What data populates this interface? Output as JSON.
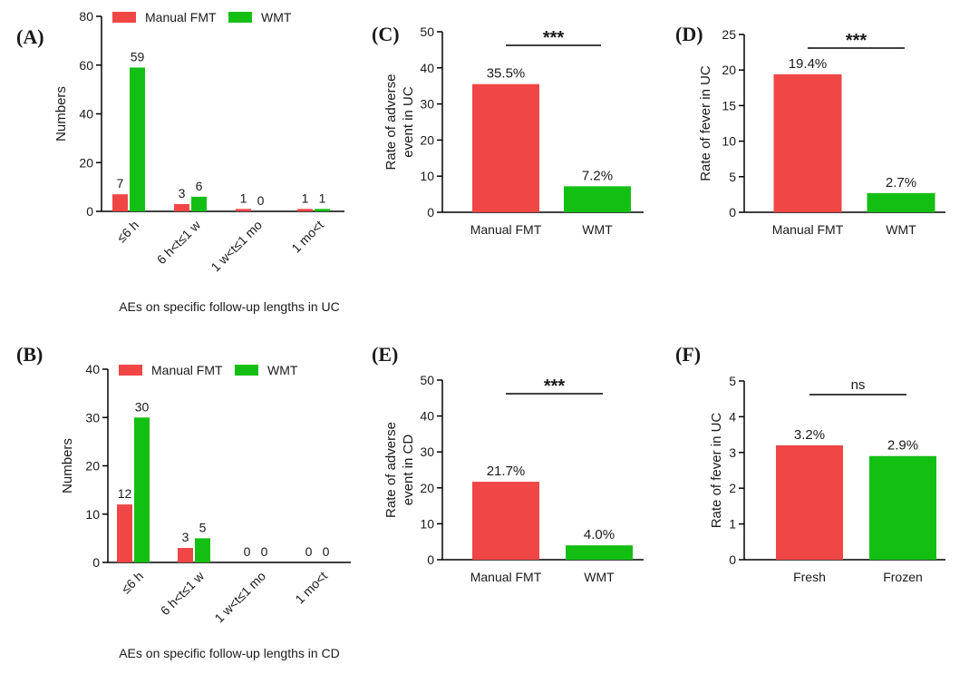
{
  "colors": {
    "manual": "#f04646",
    "wmt": "#14bf14",
    "axis": "#000000"
  },
  "chart_data": [
    {
      "id": "A",
      "type": "bar",
      "panel_label": "(A)",
      "categories": [
        "≤6 h",
        "6 h<t≤1 w",
        "1 w<t≤1 mo",
        "1 mo<t"
      ],
      "series": [
        {
          "name": "Manual FMT",
          "values": [
            7,
            3,
            1,
            1
          ]
        },
        {
          "name": "WMT",
          "values": [
            59,
            6,
            0,
            1
          ]
        }
      ],
      "ylabel": "Numbers",
      "xlabel": "AEs on specific follow-up lengths in UC",
      "ylim": [
        0,
        80
      ],
      "yticks": [
        0,
        20,
        40,
        60,
        80
      ],
      "legend": "top"
    },
    {
      "id": "B",
      "type": "bar",
      "panel_label": "(B)",
      "categories": [
        "≤6 h",
        "6 h<t≤1 w",
        "1 w<t≤1 mo",
        "1 mo<t"
      ],
      "series": [
        {
          "name": "Manual FMT",
          "values": [
            12,
            3,
            0,
            0
          ]
        },
        {
          "name": "WMT",
          "values": [
            30,
            5,
            0,
            0
          ]
        }
      ],
      "ylabel": "Numbers",
      "xlabel": "AEs on specific follow-up lengths in CD",
      "ylim": [
        0,
        40
      ],
      "yticks": [
        0,
        10,
        20,
        30,
        40
      ],
      "legend": "top"
    },
    {
      "id": "C",
      "type": "bar",
      "panel_label": "(C)",
      "categories": [
        "Manual FMT",
        "WMT"
      ],
      "values": [
        35.5,
        7.2
      ],
      "value_labels": [
        "35.5%",
        "7.2%"
      ],
      "ylabel": "Rate of adverse event in UC",
      "ylabel_lines": [
        "Rate of adverse",
        "event in UC"
      ],
      "ylim": [
        0,
        50
      ],
      "yticks": [
        0,
        10,
        20,
        30,
        40,
        50
      ],
      "significance": "***"
    },
    {
      "id": "D",
      "type": "bar",
      "panel_label": "(D)",
      "categories": [
        "Manual FMT",
        "WMT"
      ],
      "values": [
        19.4,
        2.7
      ],
      "value_labels": [
        "19.4%",
        "2.7%"
      ],
      "ylabel": "Rate of fever in UC",
      "ylabel_lines": [
        "Rate of fever in UC"
      ],
      "ylim": [
        0,
        25
      ],
      "yticks": [
        0,
        5,
        10,
        15,
        20,
        25
      ],
      "significance": "***"
    },
    {
      "id": "E",
      "type": "bar",
      "panel_label": "(E)",
      "categories": [
        "Manual FMT",
        "WMT"
      ],
      "values": [
        21.7,
        4.0
      ],
      "value_labels": [
        "21.7%",
        "4.0%"
      ],
      "ylabel": "Rate of adverse event in CD",
      "ylabel_lines": [
        "Rate of adverse",
        "event in CD"
      ],
      "ylim": [
        0,
        50
      ],
      "yticks": [
        0,
        10,
        20,
        30,
        40,
        50
      ],
      "significance": "***"
    },
    {
      "id": "F",
      "type": "bar",
      "panel_label": "(F)",
      "categories": [
        "Fresh",
        "Frozen"
      ],
      "values": [
        3.2,
        2.9
      ],
      "value_labels": [
        "3.2%",
        "2.9%"
      ],
      "ylabel": "Rate of fever in UC",
      "ylabel_lines": [
        "Rate of fever in UC"
      ],
      "ylim": [
        0,
        5
      ],
      "yticks": [
        0,
        1,
        2,
        3,
        4,
        5
      ],
      "significance": "ns"
    }
  ]
}
